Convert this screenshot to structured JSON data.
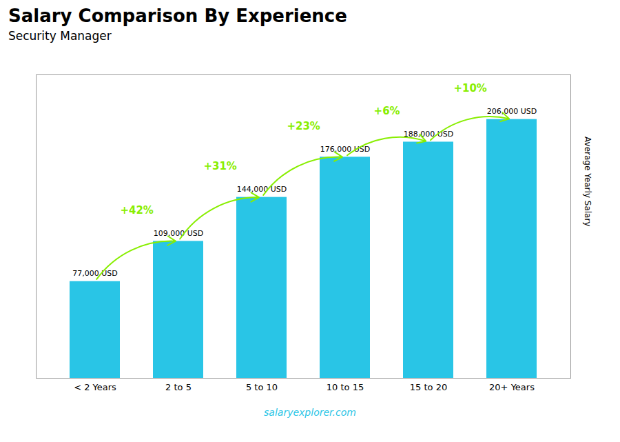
{
  "chart_data": {
    "type": "bar",
    "title": "Salary Comparison By Experience",
    "subtitle": "Security Manager",
    "ylabel": "Average Yearly Salary",
    "caption": "salaryexplorer.com",
    "categories": [
      "< 2 Years",
      "2 to 5",
      "5 to 10",
      "10 to 15",
      "15 to 20",
      "20+ Years"
    ],
    "values": [
      77000,
      109000,
      144000,
      176000,
      188000,
      206000
    ],
    "value_labels": [
      "77,000 USD",
      "109,000 USD",
      "144,000 USD",
      "176,000 USD",
      "188,000 USD",
      "206,000 USD"
    ],
    "data_labels": true,
    "color": "#29c5e6",
    "ylim": [
      0,
      241500
    ],
    "tick_labels": "x",
    "grid": false,
    "annotations": [
      {
        "text": "+42%",
        "color": "#88ee00"
      },
      {
        "text": "+31%",
        "color": "#88ee00"
      },
      {
        "text": "+23%",
        "color": "#88ee00"
      },
      {
        "text": "+6%",
        "color": "#88ee00"
      },
      {
        "text": "+10%",
        "color": "#88ee00"
      }
    ]
  }
}
